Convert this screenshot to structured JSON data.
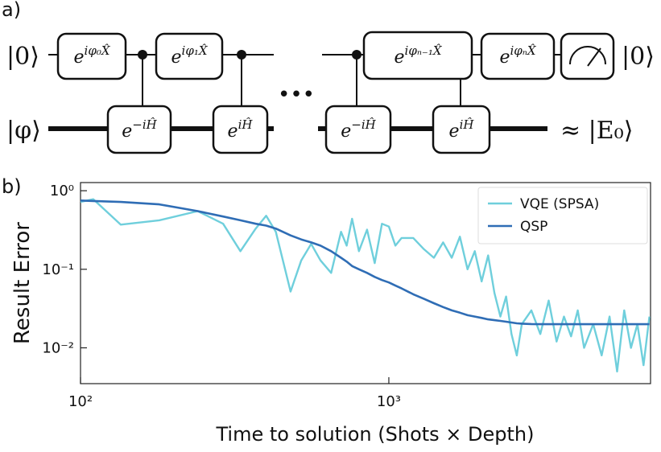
{
  "panel_a": {
    "label": "a)",
    "input_top": "|0⟩",
    "input_bottom": "|φ⟩",
    "output_top": "|0⟩",
    "output_bottom": "≈ |E₀⟩",
    "ellipsis": "•••",
    "top_gates": [
      {
        "base": "e",
        "exp": "iφ₀X̂"
      },
      {
        "base": "e",
        "exp": "iφ₁X̂"
      },
      {
        "base": "e",
        "exp": "iφₙ₋₁X̂"
      },
      {
        "base": "e",
        "exp": "iφₙX̂"
      }
    ],
    "bottom_gates": [
      {
        "base": "e",
        "exp": "−iĤ"
      },
      {
        "base": "e",
        "exp": "iĤ"
      },
      {
        "base": "e",
        "exp": "−iĤ"
      },
      {
        "base": "e",
        "exp": "iĤ"
      }
    ]
  },
  "chart_data": {
    "type": "line",
    "label": "b)",
    "xlabel": "Time to solution (Shots × Depth)",
    "ylabel": "Result Error",
    "xscale": "log",
    "yscale": "log",
    "xlim": [
      100,
      7060
    ],
    "ylim": [
      0.0035,
      1.27
    ],
    "xticks": [
      {
        "value": 100,
        "label": "10²"
      },
      {
        "value": 1000,
        "label": "10³"
      }
    ],
    "yticks": [
      {
        "value": 1,
        "label": "10⁰"
      },
      {
        "value": 0.1,
        "label": "10⁻¹"
      },
      {
        "value": 0.01,
        "label": "10⁻²"
      }
    ],
    "legend": "upper right",
    "x": [
      100,
      110,
      135,
      180,
      240,
      290,
      330,
      370,
      400,
      430,
      480,
      520,
      560,
      600,
      650,
      700,
      730,
      760,
      800,
      850,
      900,
      950,
      1000,
      1050,
      1100,
      1200,
      1300,
      1400,
      1500,
      1600,
      1700,
      1800,
      1900,
      2000,
      2100,
      2200,
      2300,
      2400,
      2500,
      2600,
      2700,
      2900,
      3100,
      3300,
      3500,
      3700,
      3900,
      4100,
      4300,
      4600,
      4900,
      5200,
      5500,
      5800,
      6100,
      6400,
      6700,
      7000
    ],
    "series": [
      {
        "name": "VQE (SPSA)",
        "color": "#6fcfdc",
        "values": [
          0.72,
          0.78,
          0.37,
          0.42,
          0.55,
          0.38,
          0.17,
          0.33,
          0.48,
          0.3,
          0.052,
          0.13,
          0.21,
          0.13,
          0.09,
          0.3,
          0.2,
          0.44,
          0.17,
          0.32,
          0.12,
          0.38,
          0.35,
          0.2,
          0.25,
          0.25,
          0.18,
          0.14,
          0.22,
          0.14,
          0.26,
          0.1,
          0.17,
          0.07,
          0.15,
          0.05,
          0.025,
          0.045,
          0.015,
          0.008,
          0.02,
          0.03,
          0.015,
          0.04,
          0.012,
          0.025,
          0.014,
          0.03,
          0.01,
          0.02,
          0.008,
          0.025,
          0.005,
          0.03,
          0.01,
          0.02,
          0.006,
          0.025
        ]
      },
      {
        "name": "QSP",
        "color": "#2f6db5",
        "values": [
          0.75,
          0.74,
          0.72,
          0.67,
          0.55,
          0.47,
          0.42,
          0.38,
          0.36,
          0.33,
          0.27,
          0.24,
          0.22,
          0.2,
          0.17,
          0.14,
          0.125,
          0.11,
          0.1,
          0.09,
          0.08,
          0.073,
          0.068,
          0.062,
          0.057,
          0.048,
          0.042,
          0.037,
          0.033,
          0.03,
          0.028,
          0.026,
          0.025,
          0.024,
          0.023,
          0.0225,
          0.022,
          0.0215,
          0.021,
          0.0205,
          0.0203,
          0.0201,
          0.02,
          0.02,
          0.02,
          0.02,
          0.02,
          0.02,
          0.02,
          0.02,
          0.02,
          0.02,
          0.02,
          0.02,
          0.02,
          0.02,
          0.02,
          0.02
        ]
      }
    ]
  }
}
